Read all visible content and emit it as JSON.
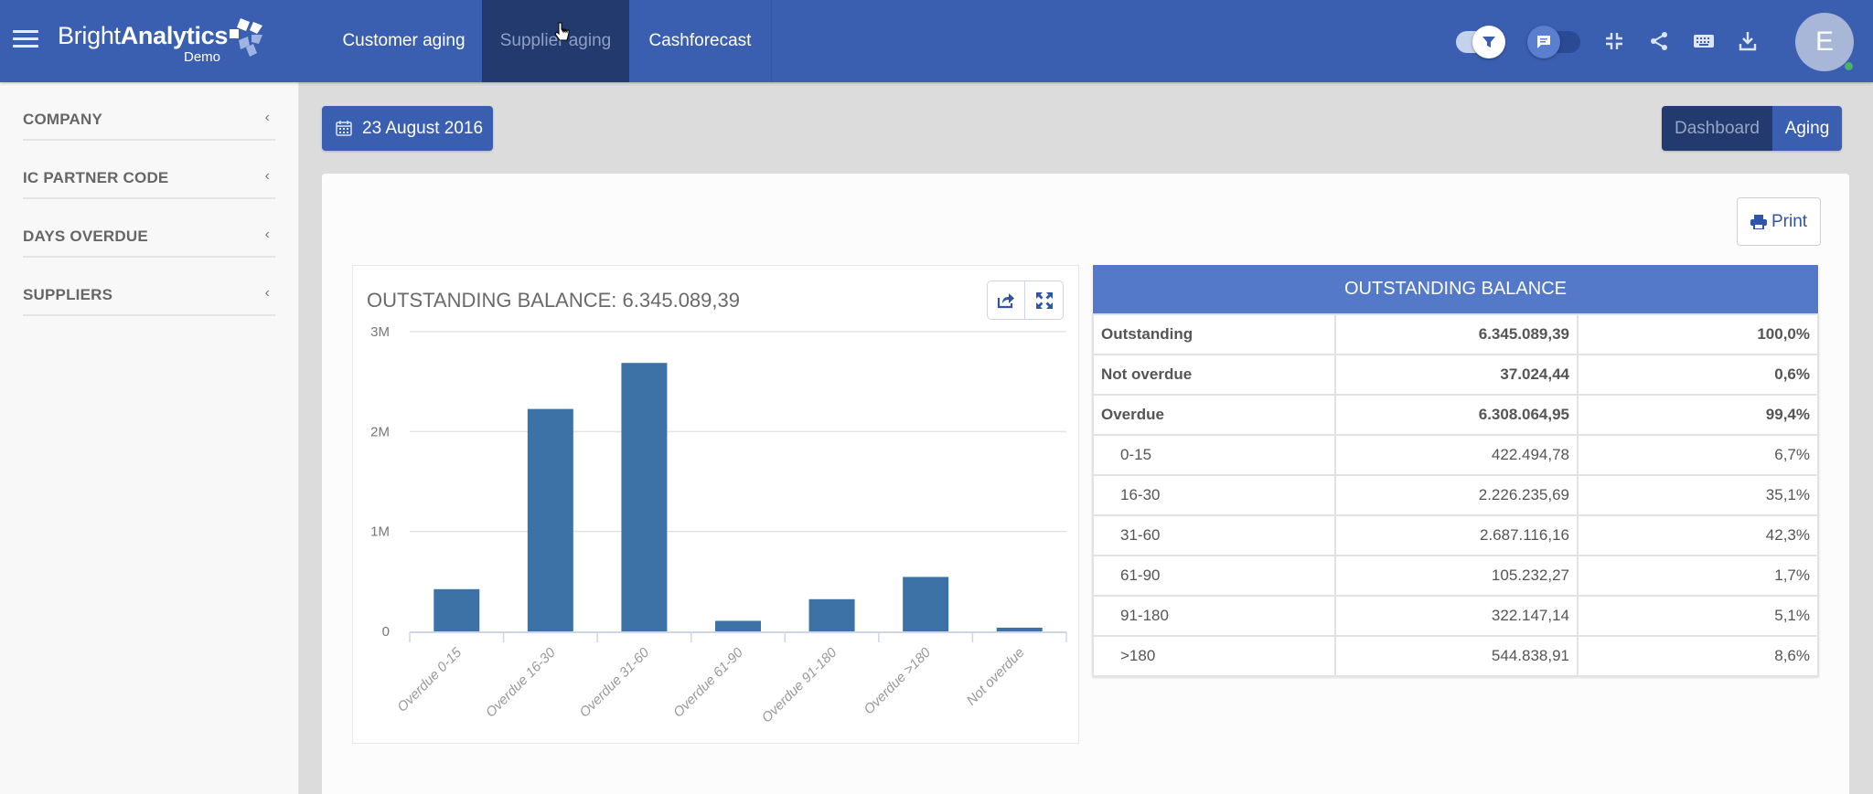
{
  "header": {
    "menu_icon": "hamburger-icon",
    "logo": {
      "brand_light": "Bright",
      "brand_bold": "Analytics",
      "subtitle": "Demo"
    },
    "tabs": [
      {
        "label": "Customer aging",
        "active": false
      },
      {
        "label": "Supplier aging",
        "active": true
      },
      {
        "label": "Cashforecast",
        "active": false
      }
    ],
    "toggles": [
      {
        "name": "filter-toggle",
        "icon": "filter-icon",
        "state": "on"
      },
      {
        "name": "comment-toggle",
        "icon": "comment-icon",
        "state": "off"
      }
    ],
    "icons": [
      "collapse-icon",
      "share-icon",
      "keyboard-icon",
      "download-icon"
    ],
    "avatar": {
      "initial": "E",
      "status_color": "#4caf6a"
    },
    "colors": {
      "bar": "#3b5fb0",
      "active_tab": "#233a6e"
    }
  },
  "sidebar": {
    "items": [
      {
        "label": "COMPANY"
      },
      {
        "label": "IC PARTNER CODE"
      },
      {
        "label": "DAYS OVERDUE"
      },
      {
        "label": "SUPPLIERS"
      }
    ]
  },
  "toolbar": {
    "date_label": "23 August 2016",
    "view_switch": {
      "dashboard": "Dashboard",
      "aging": "Aging",
      "active": "Aging"
    },
    "print_label": "Print"
  },
  "chart_panel": {
    "title": "OUTSTANDING BALANCE: 6.345.089,39"
  },
  "chart_data": {
    "type": "bar",
    "title": "OUTSTANDING BALANCE: 6.345.089,39",
    "categories": [
      "Overdue 0-15",
      "Overdue 16-30",
      "Overdue 31-60",
      "Overdue 61-90",
      "Overdue 91-180",
      "Overdue >180",
      "Not overdue"
    ],
    "values": [
      422494.78,
      2226235.69,
      2687116.16,
      105232.27,
      322147.14,
      544838.91,
      37024.44
    ],
    "xlabel": "",
    "ylabel": "",
    "ylim": [
      0,
      3000000
    ],
    "yticks": [
      "0",
      "1M",
      "2M",
      "3M"
    ],
    "grid": true,
    "legend": "none",
    "bar_color": "#3d72a6"
  },
  "table": {
    "header": "OUTSTANDING BALANCE",
    "header_color": "#5479c9",
    "rows": [
      {
        "label": "Outstanding",
        "amount": "6.345.089,39",
        "pct": "100,0%",
        "bold": true
      },
      {
        "label": "Not overdue",
        "amount": "37.024,44",
        "pct": "0,6%",
        "bold": true
      },
      {
        "label": "Overdue",
        "amount": "6.308.064,95",
        "pct": "99,4%",
        "bold": true
      },
      {
        "label": "0-15",
        "amount": "422.494,78",
        "pct": "6,7%",
        "bold": false
      },
      {
        "label": "16-30",
        "amount": "2.226.235,69",
        "pct": "35,1%",
        "bold": false
      },
      {
        "label": "31-60",
        "amount": "2.687.116,16",
        "pct": "42,3%",
        "bold": false
      },
      {
        "label": "61-90",
        "amount": "105.232,27",
        "pct": "1,7%",
        "bold": false
      },
      {
        "label": "91-180",
        "amount": "322.147,14",
        "pct": "5,1%",
        "bold": false
      },
      {
        "label": ">180",
        "amount": "544.838,91",
        "pct": "8,6%",
        "bold": false
      }
    ]
  }
}
